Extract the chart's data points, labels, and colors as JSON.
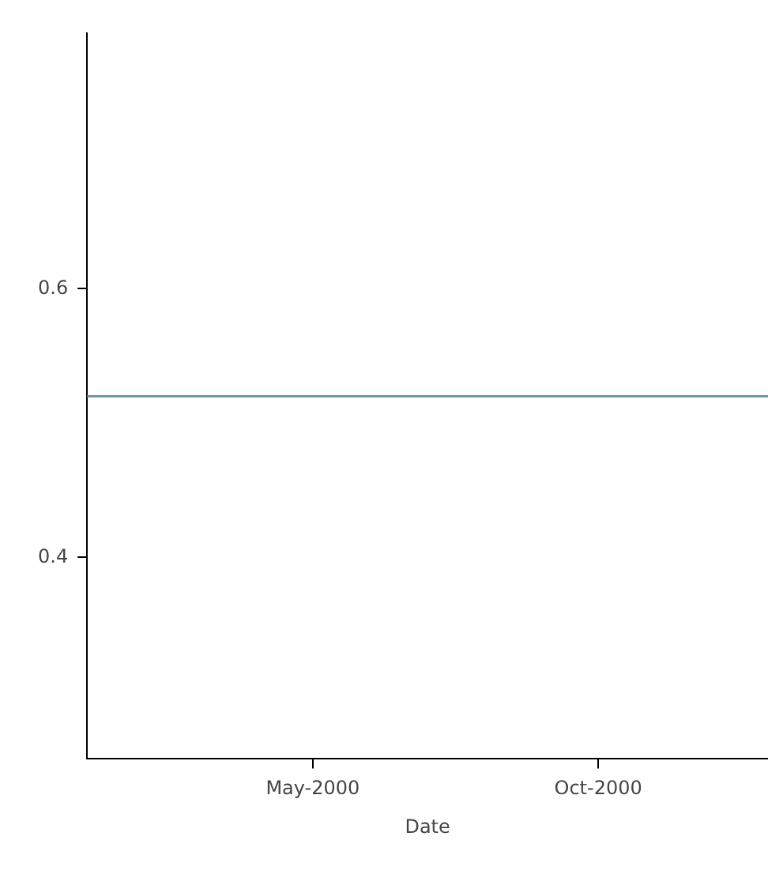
{
  "chart_data": {
    "type": "line",
    "xlabel": "Date",
    "x": [
      "2000-01-01",
      "2000-12-31"
    ],
    "series": [
      {
        "color": "#6e9aa6",
        "values": [
          0.52,
          0.52
        ]
      }
    ],
    "xlim": [
      "2000-01-01",
      "2000-12-31"
    ],
    "xticks": [
      {
        "value": "2000-05-01",
        "label": "May-2000"
      },
      {
        "value": "2000-10-01",
        "label": "Oct-2000"
      }
    ],
    "ylim": [
      0.25,
      0.79
    ],
    "yticks": [
      0.4,
      0.6
    ],
    "grid": false,
    "legend": false,
    "marker": "none",
    "line_style": "solid"
  }
}
